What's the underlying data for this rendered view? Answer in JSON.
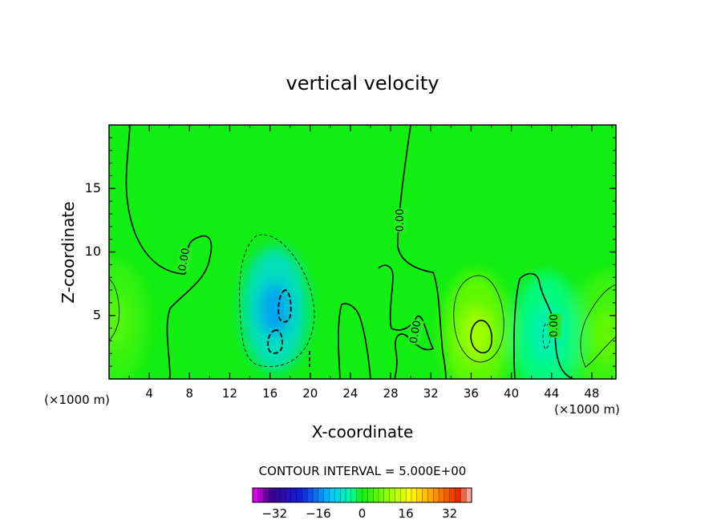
{
  "chart_data": {
    "type": "heatmap",
    "title": "vertical velocity",
    "xlabel": "X-coordinate",
    "ylabel": "Z-coordinate",
    "x_unit_left": "(×1000 m)",
    "x_unit_right": "(×1000 m)",
    "xlim": [
      0,
      50.4
    ],
    "ylim": [
      0,
      20
    ],
    "x_ticks": [
      4,
      8,
      12,
      16,
      20,
      24,
      28,
      32,
      36,
      40,
      44,
      48
    ],
    "x_tick_labels": [
      "4",
      "8",
      "12",
      "16",
      "20",
      "24",
      "28",
      "32",
      "36",
      "40",
      "44",
      "48"
    ],
    "y_ticks": [
      5,
      10,
      15
    ],
    "y_tick_labels": [
      "5",
      "10",
      "15"
    ],
    "contour_interval_label": "CONTOUR INTERVAL = 5.000E+00",
    "contour_interval": 5,
    "contour_labels": [
      {
        "text": "0.00",
        "x": 7.5,
        "y": 9.4,
        "angle": -80
      },
      {
        "text": "0.00",
        "x": 29.0,
        "y": 12.5,
        "angle": -90
      },
      {
        "text": "0.00",
        "x": 30.5,
        "y": 3.7,
        "angle": -80
      },
      {
        "text": "0.00",
        "x": 44.3,
        "y": 4.2,
        "angle": -90
      }
    ],
    "colorbar": {
      "range": [
        -40,
        40
      ],
      "tick_values": [
        -32,
        -16,
        0,
        16,
        32
      ],
      "tick_labels": [
        "−32",
        "−16",
        "0",
        "16",
        "32"
      ]
    },
    "features": [
      {
        "kind": "downdraft",
        "x": 16.5,
        "y": 5.5,
        "peak": -14
      },
      {
        "kind": "updraft",
        "x": 36.5,
        "y": 3.5,
        "peak": 11
      },
      {
        "kind": "updraft",
        "x": 49.5,
        "y": 3.5,
        "peak": 6
      },
      {
        "kind": "downdraft",
        "x": 43.5,
        "y": 3.5,
        "peak": -6
      },
      {
        "kind": "updraft",
        "x": 0.5,
        "y": 4.5,
        "peak": 5
      }
    ],
    "colors": {
      "background_field": "#11ee11",
      "frame": "#000000"
    }
  }
}
